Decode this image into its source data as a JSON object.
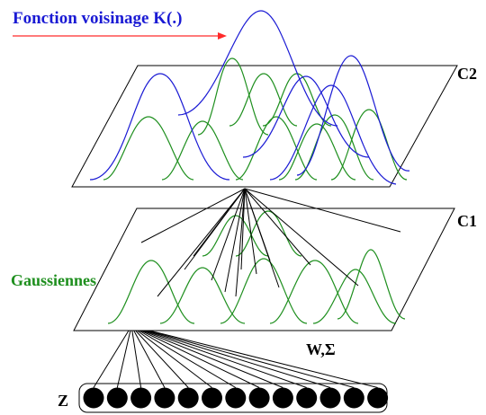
{
  "labels": {
    "title": "Fonction voisinage K(.)",
    "layer_top": "C2",
    "layer_mid": "C1",
    "gaussians": "Gaussiennes",
    "weights": "W,Σ",
    "input": "Z"
  },
  "colors": {
    "title": "#1a1ad4",
    "arrow": "#ff2a2a",
    "blue_curves": "#1a1ad4",
    "green_curves": "#1e8f1e",
    "lines": "#000000",
    "nodes": "#000000"
  },
  "input_node_count": 13
}
